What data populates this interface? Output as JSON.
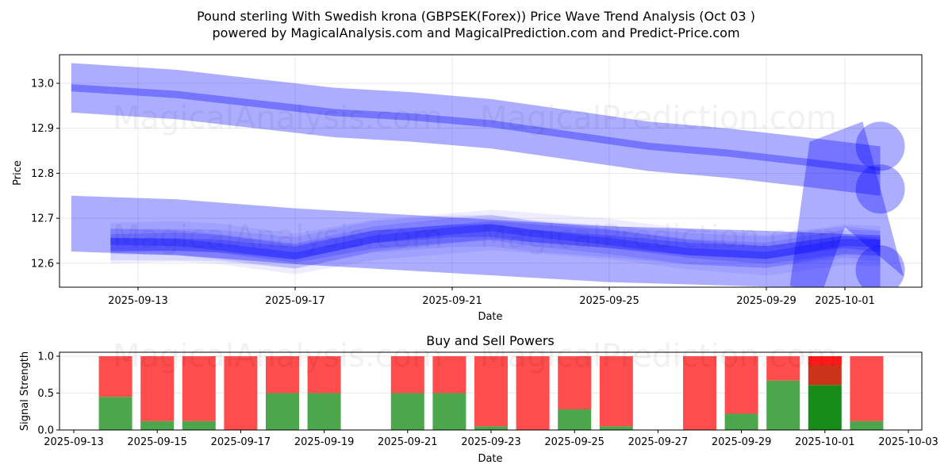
{
  "title_line1": "Pound sterling With Swedish krona (GBPSEK(Forex)) Price Wave Trend Analysis (Oct 03 )",
  "title_line2": "powered by MagicalAnalysis.com and MagicalPrediction.com and Predict-Price.com",
  "watermarks": [
    "MagicalAnalysis.com",
    "MagicalPrediction.com"
  ],
  "colors": {
    "band": "#0000ff",
    "buy": "#4ca64c",
    "sell": "#ff4c4c",
    "buy_highlight": "#188c18",
    "sell_highlight": "#cc3319",
    "sell_top_highlight": "#ff1a1a"
  },
  "chart_data": [
    {
      "type": "area",
      "title": "",
      "xlabel": "Date",
      "ylabel": "Price",
      "ylim": [
        12.545,
        13.065
      ],
      "xlim": [
        "2025-09-11",
        "2025-10-03"
      ],
      "grid": true,
      "yticks": [
        "12.6",
        "12.7",
        "12.8",
        "12.9",
        "13.0"
      ],
      "ytick_values": [
        12.6,
        12.7,
        12.8,
        12.9,
        13.0
      ],
      "xticks": [
        "2025-09-13",
        "2025-09-17",
        "2025-09-21",
        "2025-09-25",
        "2025-09-29",
        "2025-10-01"
      ],
      "xtick_days": [
        0,
        4,
        8,
        12,
        16,
        18
      ],
      "series": [
        {
          "name": "upper-wave-center",
          "x_days": [
            -1.7,
            1,
            3,
            5,
            7,
            9,
            11,
            13,
            15,
            17,
            18.9
          ],
          "values": [
            12.99,
            12.975,
            12.955,
            12.935,
            12.925,
            12.91,
            12.885,
            12.86,
            12.845,
            12.825,
            12.805
          ],
          "band_halfwidth": 0.055
        },
        {
          "name": "lower-wave-center",
          "x_days": [
            -1.7,
            1,
            2,
            4,
            6,
            8,
            9,
            10,
            12,
            14,
            16,
            18,
            18.9
          ],
          "values": [
            12.645,
            12.645,
            12.64,
            12.62,
            12.655,
            12.67,
            12.675,
            12.665,
            12.65,
            12.63,
            12.62,
            12.645,
            12.64
          ],
          "band_halfwidth": 0.02
        },
        {
          "name": "lower-wave-outer",
          "x_days": [
            -1.7,
            1,
            4,
            8,
            12,
            16,
            18.9
          ],
          "values": [
            12.688,
            12.68,
            12.66,
            12.64,
            12.62,
            12.61,
            12.6
          ],
          "band_halfwidth": 0.062
        }
      ]
    },
    {
      "type": "bar",
      "title": "Buy and Sell Powers",
      "xlabel": "Date",
      "ylabel": "Signal Strength",
      "ylim": [
        0,
        1.05
      ],
      "yticks": [
        "0.0",
        "0.5",
        "1.0"
      ],
      "ytick_values": [
        0,
        0.5,
        1.0
      ],
      "xticks": [
        "2025-09-13",
        "2025-09-15",
        "2025-09-17",
        "2025-09-19",
        "2025-09-21",
        "2025-09-23",
        "2025-09-25",
        "2025-09-27",
        "2025-09-29",
        "2025-10-01",
        "2025-10-03"
      ],
      "xtick_days": [
        0,
        2,
        4,
        6,
        8,
        10,
        12,
        14,
        16,
        18,
        20
      ],
      "grid": true,
      "categories": [
        "2025-09-14",
        "2025-09-15",
        "2025-09-16",
        "2025-09-17",
        "2025-09-18",
        "2025-09-19",
        "2025-09-21",
        "2025-09-22",
        "2025-09-23",
        "2025-09-24",
        "2025-09-25",
        "2025-09-26",
        "2025-09-28",
        "2025-09-29",
        "2025-09-30",
        "2025-10-01",
        "2025-10-02"
      ],
      "category_days": [
        1,
        2,
        3,
        4,
        5,
        6,
        8,
        9,
        10,
        11,
        12,
        13,
        15,
        16,
        17,
        18,
        19
      ],
      "series": [
        {
          "name": "Buy",
          "values": [
            0.45,
            0.12,
            0.12,
            0.0,
            0.5,
            0.5,
            0.5,
            0.5,
            0.05,
            0.0,
            0.28,
            0.05,
            0.0,
            0.22,
            0.67,
            0.61,
            0.12
          ]
        },
        {
          "name": "Sell",
          "values": [
            0.55,
            0.88,
            0.88,
            1.0,
            0.5,
            0.5,
            0.5,
            0.5,
            0.95,
            1.0,
            0.72,
            0.95,
            1.0,
            0.78,
            0.33,
            0.39,
            0.88
          ]
        }
      ],
      "highlight_category": "2025-10-01",
      "highlight_sell_top_fraction": 0.12
    }
  ]
}
